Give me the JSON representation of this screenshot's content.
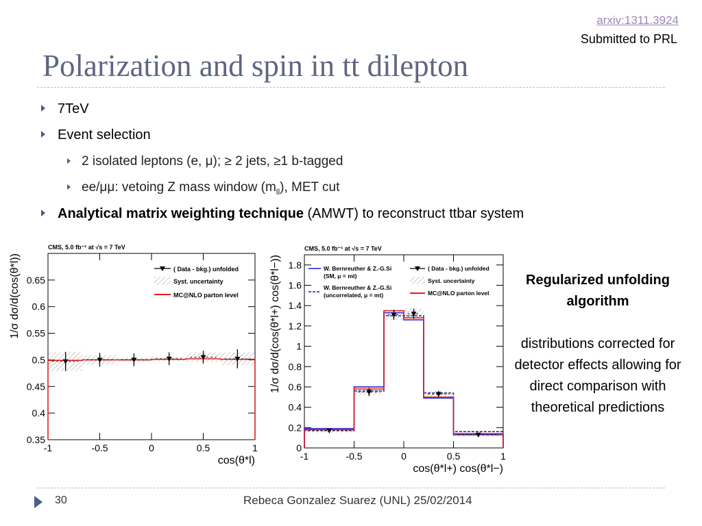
{
  "header": {
    "ref_link": "arxiv:1311.3924",
    "ref_note": "Submitted to PRL",
    "title": "Polarization and spin in tt dilepton"
  },
  "bullets": {
    "b1": "7TeV",
    "b2": "Event selection",
    "b2_sub1": "2 isolated leptons (e, μ);  ≥ 2 jets,  ≥1 b-tagged",
    "b2_sub2_pre": "ee/μμ: vetoing Z mass window (m",
    "b2_sub2_subscript": "ll",
    "b2_sub2_post": "), MET cut",
    "b3_bold": "Analytical matrix weighting technique",
    "b3_rest": " (AMWT) to reconstruct ttbar system"
  },
  "side_note": {
    "heading": "Regularized unfolding algorithm",
    "description": "distributions corrected for detector effects allowing for direct comparison with theoretical predictions"
  },
  "footer": {
    "page_number": "30",
    "text": "Rebeca Gonzalez Suarez (UNL) 25/02/2014"
  },
  "colors": {
    "title": "#5e6682",
    "bullet_accent": "#4a5d84",
    "link": "#9b86b6",
    "mc_line": "#e02020",
    "sm_line": "#3a3ae0",
    "uncorr_line": "#1a1a80"
  },
  "chart_data": [
    {
      "type": "line",
      "header": "CMS, 5.0 fb⁻¹ at √s = 7 TeV",
      "xlabel": "cos(θ*l)",
      "ylabel": "1/σ dσ/d(cos(θ*l))",
      "xlim": [
        -1,
        1
      ],
      "ylim": [
        0.35,
        0.7
      ],
      "xticks": [
        "-1",
        "-0.5",
        "0",
        "0.5",
        "1"
      ],
      "yticks": [
        "0.35",
        "0.4",
        "0.45",
        "0.5",
        "0.55",
        "0.6",
        "0.65"
      ],
      "legend": [
        "( Data - bkg.) unfolded",
        "Syst. uncertainty",
        "MC@NLO parton level"
      ],
      "legend_position": "top-right",
      "bin_edges": [
        -1,
        -0.667,
        -0.333,
        0,
        0.333,
        0.667,
        1
      ],
      "series": [
        {
          "name": "( Data - bkg.) unfolded",
          "x": [
            -0.83,
            -0.5,
            -0.17,
            0.17,
            0.5,
            0.83
          ],
          "y": [
            0.497,
            0.5,
            0.5,
            0.502,
            0.505,
            0.502
          ],
          "err": [
            0.018,
            0.013,
            0.012,
            0.012,
            0.012,
            0.018
          ]
        },
        {
          "name": "MC@NLO parton level",
          "values": [
            0.499,
            0.5,
            0.5,
            0.501,
            0.502,
            0.501
          ]
        },
        {
          "name": "Syst. uncertainty",
          "values": [
            0.018,
            0.009,
            0.004,
            0.004,
            0.009,
            0.012
          ]
        }
      ]
    },
    {
      "type": "line",
      "header": "CMS, 5.0 fb⁻¹ at √s = 7 TeV",
      "xlabel": "cos(θ*l+) cos(θ*l−)",
      "ylabel": "1/σ dσ/d(cos(θ*l+) cos(θ*l−))",
      "xlim": [
        -1,
        1
      ],
      "ylim": [
        0,
        1.9
      ],
      "xticks": [
        "-1",
        "-0.5",
        "0",
        "0.5",
        "1"
      ],
      "yticks": [
        "0",
        "0.2",
        "0.4",
        "0.6",
        "0.8",
        "1",
        "1.2",
        "1.4",
        "1.6",
        "1.8"
      ],
      "legend": [
        "W. Bernreuther & Z.-G.Si",
        "(SM, μ = mt)",
        "W. Bernreuther & Z.-G.Si",
        "(uncorrelated, μ = mt)",
        "( Data - bkg.) unfolded",
        "Syst. uncertainty",
        "MC@NLO parton level"
      ],
      "legend_position": "top",
      "bin_edges": [
        -1,
        -0.5,
        -0.2,
        0,
        0.2,
        0.5,
        1
      ],
      "series": [
        {
          "name": "( Data - bkg.) unfolded",
          "x": [
            -0.75,
            -0.35,
            -0.1,
            0.1,
            0.35,
            0.75
          ],
          "y": [
            0.17,
            0.55,
            1.31,
            1.32,
            0.53,
            0.13
          ],
          "err": [
            0.02,
            0.04,
            0.05,
            0.05,
            0.03,
            0.02
          ]
        },
        {
          "name": "MC@NLO parton level",
          "values": [
            0.18,
            0.58,
            1.35,
            1.28,
            0.5,
            0.14
          ]
        },
        {
          "name": "SM, μ = mt",
          "values": [
            0.19,
            0.6,
            1.33,
            1.26,
            0.49,
            0.13
          ]
        },
        {
          "name": "uncorrelated, μ = mt",
          "values": [
            0.17,
            0.56,
            1.3,
            1.3,
            0.54,
            0.16
          ]
        }
      ]
    }
  ]
}
